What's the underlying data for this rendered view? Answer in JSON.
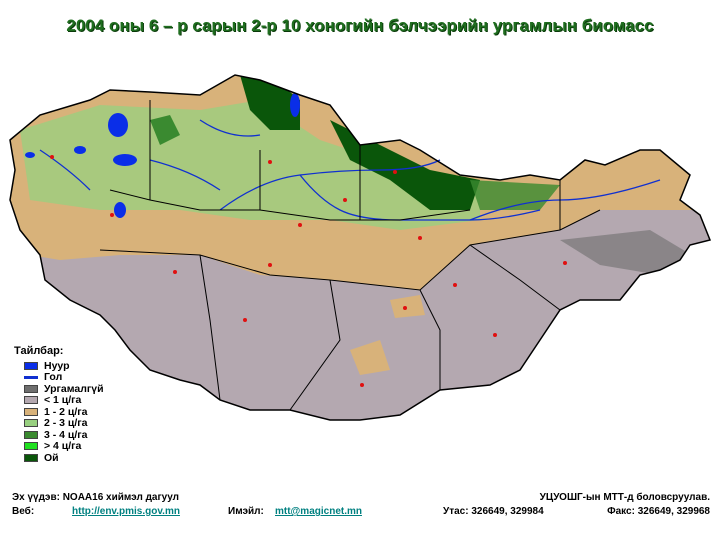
{
  "title": "2004 оны 6 – р сарын 2-р 10 хоногийн бэлчээрийн ургамлын биомасс",
  "legend": {
    "title": "Тайлбар:",
    "items": [
      {
        "label": "Нуур",
        "color": "#0a2ee8",
        "kind": "box"
      },
      {
        "label": "Гол",
        "color": "#1030d0",
        "kind": "line"
      },
      {
        "label": "Ургамалгүй",
        "color": "#6e6e6e",
        "kind": "box"
      },
      {
        "label": "< 1 ц/га",
        "color": "#b4a8b0",
        "kind": "box"
      },
      {
        "label": "1 - 2 ц/га",
        "color": "#d8b27a",
        "kind": "box"
      },
      {
        "label": "2 - 3 ц/га",
        "color": "#98d080",
        "kind": "box"
      },
      {
        "label": "3 - 4 ц/га",
        "color": "#3a8a30",
        "kind": "box"
      },
      {
        "label": "> 4 ц/га",
        "color": "#20e020",
        "kind": "box"
      },
      {
        "label": "Ой",
        "color": "#0a560a",
        "kind": "box"
      }
    ]
  },
  "footer": {
    "source": "Эх үүдэв: NOAA16 хиймэл дагуул",
    "web_label": "Веб:",
    "web_link": "http://env.pmis.gov.mn",
    "email_label": "Имэйл:",
    "email_link": "mtt@magicnet.mn",
    "prepared_by": "УЦУОШГ-ын МТТ-д боловсруулав.",
    "phone": "Утас: 326649, 329984",
    "fax": "Факс: 326649, 329968"
  }
}
